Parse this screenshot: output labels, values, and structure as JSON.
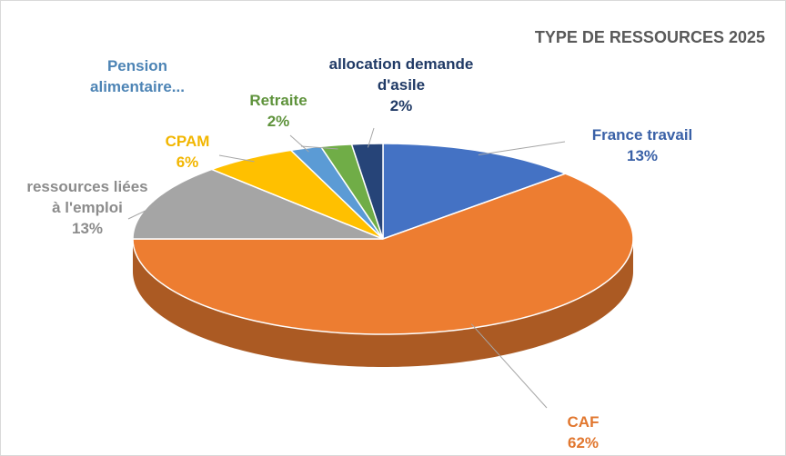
{
  "chart_data": {
    "type": "pie",
    "title": "TYPE DE RESSOURCES 2025",
    "categories": [
      "France travail",
      "CAF",
      "ressources liées à l'emploi",
      "CPAM",
      "Pension alimentaire...",
      "Retraite",
      "allocation demande d'asile"
    ],
    "values": [
      13,
      62,
      13,
      6,
      2,
      2,
      2
    ],
    "value_labels": [
      "13%",
      "62%",
      "13%",
      "6%",
      null,
      "2%",
      "2%"
    ],
    "colors": [
      "#4472c4",
      "#ed7d31",
      "#a5a5a5",
      "#ffc000",
      "#5b9bd5",
      "#70ad47",
      "#264478"
    ]
  }
}
